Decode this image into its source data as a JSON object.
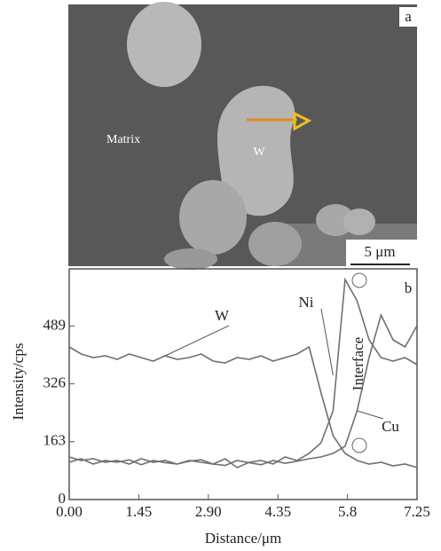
{
  "image": {
    "panel_label": "a",
    "matrix_label": "Matrix",
    "particle_label": "W",
    "scale_bar": "5 μm"
  },
  "chart_data": {
    "type": "line",
    "panel_label": "b",
    "xlabel": "Distance/μm",
    "ylabel": "Intensity/cps",
    "x": [
      0,
      0.25,
      0.5,
      0.75,
      1,
      1.25,
      1.5,
      1.75,
      2,
      2.25,
      2.5,
      2.75,
      3,
      3.25,
      3.5,
      3.75,
      4,
      4.25,
      4.5,
      4.75,
      5,
      5.25,
      5.5,
      5.75,
      6,
      6.25,
      6.5,
      6.75,
      7,
      7.25
    ],
    "series": [
      {
        "name": "W",
        "color": "#707070",
        "values": [
          430,
          410,
          400,
          405,
          395,
          410,
          400,
          390,
          405,
          395,
          400,
          410,
          390,
          385,
          400,
          395,
          405,
          390,
          400,
          410,
          430,
          300,
          180,
          130,
          110,
          100,
          105,
          95,
          100,
          90
        ]
      },
      {
        "name": "Ni",
        "color": "#707070",
        "values": [
          120,
          110,
          115,
          105,
          110,
          100,
          115,
          105,
          110,
          100,
          110,
          105,
          100,
          115,
          90,
          105,
          110,
          100,
          120,
          110,
          130,
          160,
          250,
          620,
          560,
          450,
          400,
          390,
          400,
          380
        ]
      },
      {
        "name": "Cu",
        "color": "#707070",
        "values": [
          105,
          115,
          100,
          110,
          105,
          112,
          98,
          110,
          104,
          100,
          108,
          112,
          100,
          96,
          110,
          104,
          98,
          110,
          102,
          108,
          115,
          120,
          130,
          150,
          250,
          400,
          520,
          450,
          430,
          490
        ]
      }
    ],
    "annotation": "Interface",
    "xlim": [
      0,
      7.25
    ],
    "xticks": [
      {
        "value": 0,
        "label": "0.00"
      },
      1.45,
      {
        "value": 2.9,
        "label": "2.90"
      },
      4.35,
      5.8,
      7.25
    ],
    "ylim": [
      0,
      650
    ],
    "yticks": [
      0,
      163,
      326,
      489
    ]
  }
}
